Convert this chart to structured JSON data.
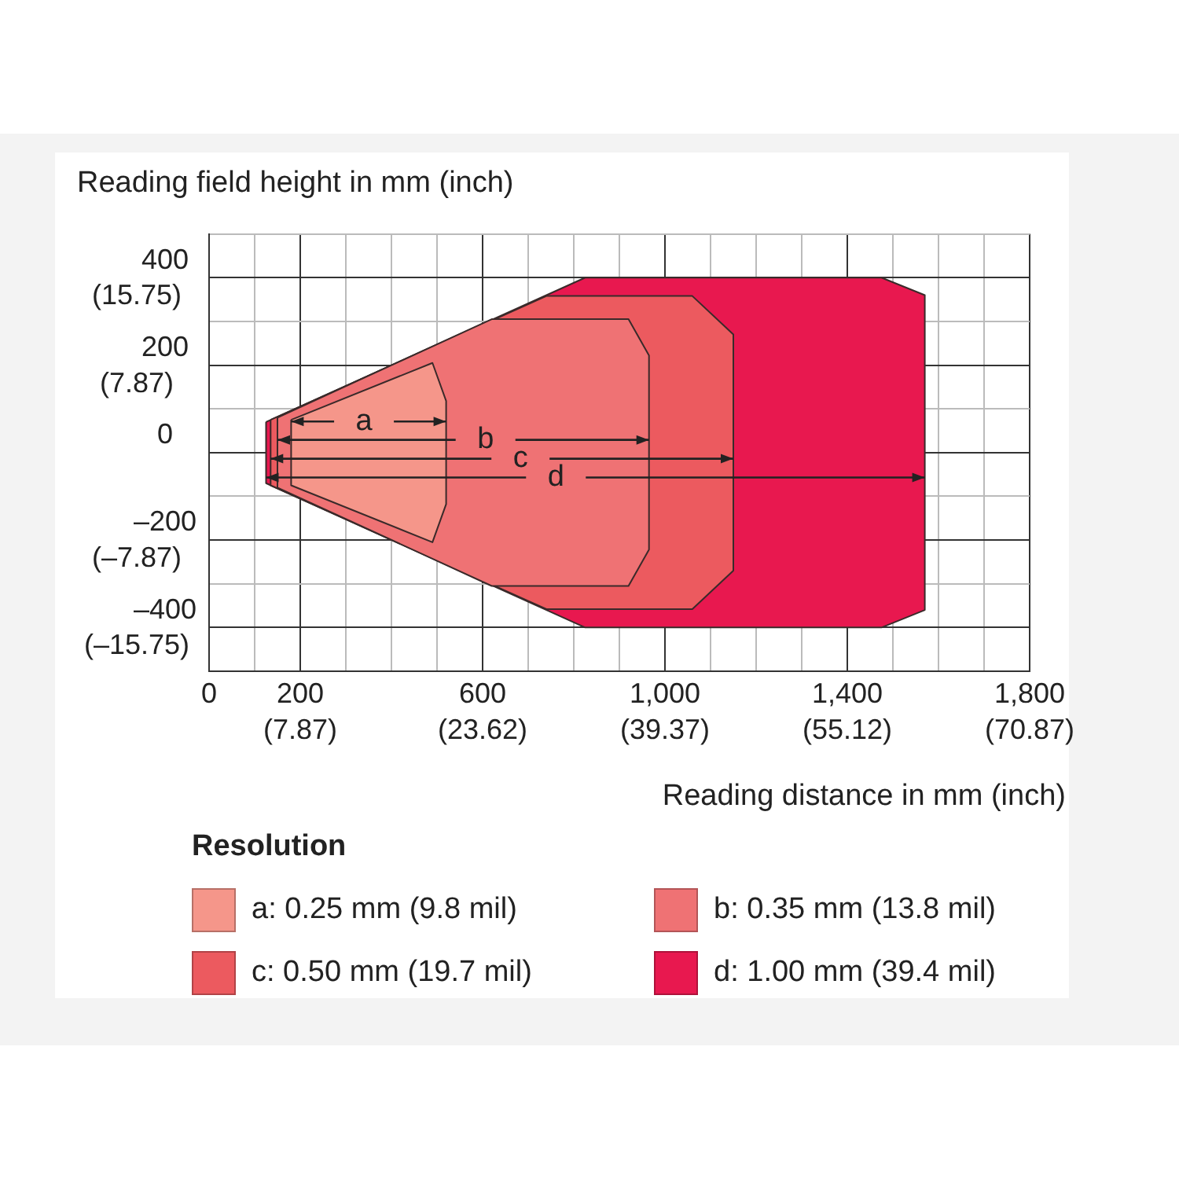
{
  "chart_data": {
    "type": "area",
    "xlabel": "Reading distance in mm (inch)",
    "ylabel": "Reading field height in mm (inch)",
    "legend_title": "Resolution",
    "legend": "bottom",
    "grid": true,
    "marker": "none",
    "xlim": [
      0,
      1800
    ],
    "ylim": [
      -500,
      500
    ],
    "xticks": [
      0,
      {
        "value": 100,
        "label": null
      },
      200,
      {
        "value": 300,
        "label": null
      },
      {
        "value": 400,
        "label": null
      },
      {
        "value": 500,
        "label": null
      },
      600,
      {
        "value": 700,
        "label": null
      },
      {
        "value": 800,
        "label": null
      },
      {
        "value": 900,
        "label": null
      },
      {
        "value": 1000,
        "label": "1,000"
      },
      {
        "value": 1100,
        "label": null
      },
      {
        "value": 1200,
        "label": null
      },
      {
        "value": 1300,
        "label": null
      },
      {
        "value": 1400,
        "label": "1,400"
      },
      {
        "value": 1500,
        "label": null
      },
      {
        "value": 1600,
        "label": null
      },
      {
        "value": 1700,
        "label": null
      },
      {
        "value": 1800,
        "label": "1,800"
      }
    ],
    "yticks": [
      {
        "value": 500,
        "label": null
      },
      400,
      {
        "value": 300,
        "label": null
      },
      200,
      {
        "value": 100,
        "label": null
      },
      0,
      {
        "value": -100,
        "label": null
      },
      {
        "value": -200,
        "label": "–200"
      },
      {
        "value": -300,
        "label": null
      },
      {
        "value": -400,
        "label": "–400"
      },
      {
        "value": -500,
        "label": null
      }
    ],
    "x2lim": [
      0,
      70.87
    ],
    "x2ticks": [
      {
        "value": 7.87,
        "label": "(7.87)"
      },
      {
        "value": 23.62,
        "label": "(23.62)"
      },
      {
        "value": 39.37,
        "label": "(39.37)"
      },
      {
        "value": 55.12,
        "label": "(55.12)"
      },
      {
        "value": 70.87,
        "label": "(70.87)"
      }
    ],
    "y2lim": [
      -19.69,
      19.69
    ],
    "y2ticks": [
      {
        "value": 15.75,
        "label": "(15.75)"
      },
      {
        "value": 7.87,
        "label": "(7.87)"
      },
      {
        "value": -7.87,
        "label": "(–7.87)"
      },
      {
        "value": -15.75,
        "label": "(–15.75)"
      }
    ],
    "series": [
      {
        "name": "a: 0.25 mm (9.8 mil)",
        "color": "#f5968a",
        "x": [
          180,
          490,
          520,
          520,
          490,
          180
        ],
        "values": [
          75,
          205,
          118,
          -118,
          -205,
          -75
        ]
      },
      {
        "name": "b: 0.35 mm (13.8 mil)",
        "color": "#ef7274",
        "x": [
          150,
          620,
          920,
          965,
          965,
          920,
          620,
          150
        ],
        "values": [
          80,
          305,
          305,
          222,
          -222,
          -305,
          -305,
          -80
        ]
      },
      {
        "name": "c: 0.50 mm (19.7 mil)",
        "color": "#ec5a5f",
        "x": [
          135,
          740,
          1060,
          1150,
          1150,
          1060,
          740,
          135
        ],
        "values": [
          75,
          358,
          358,
          270,
          -270,
          -358,
          -358,
          -75
        ]
      },
      {
        "name": "d: 1.00 mm (39.4 mil)",
        "color": "#e8184f",
        "x": [
          125,
          825,
          1475,
          1570,
          1570,
          1475,
          825,
          125
        ],
        "values": [
          70,
          400,
          400,
          360,
          -360,
          -400,
          -400,
          -70
        ]
      }
    ],
    "annotations": [
      {
        "text": "a",
        "x": 520,
        "y": 71
      },
      {
        "text": "b",
        "x": 965,
        "y": 29
      },
      {
        "text": "c",
        "x": 1150,
        "y": -14
      },
      {
        "text": "d",
        "x": 1570,
        "y": -57
      }
    ]
  }
}
